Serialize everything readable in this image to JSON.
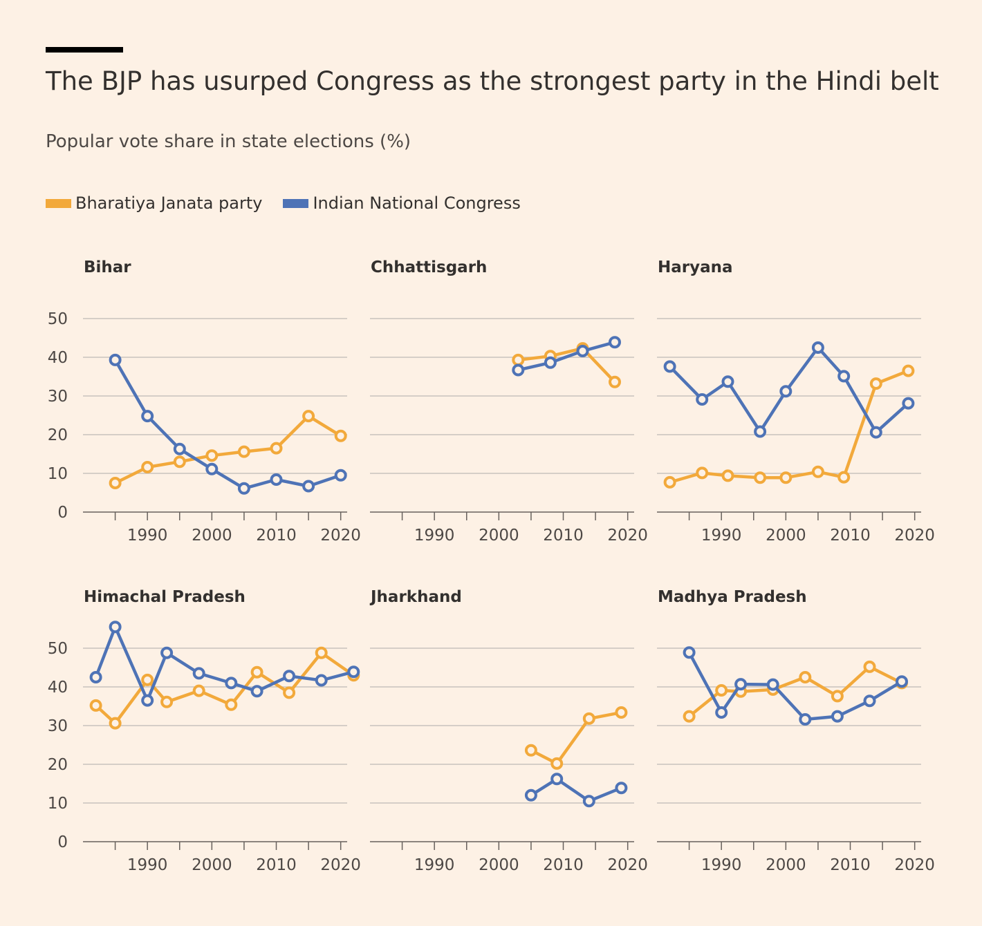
{
  "title": "The BJP has usurped Congress as the strongest party in the Hindi belt",
  "subtitle": "Popular vote share in state elections (%)",
  "colors": {
    "bjp": "#f2a93b",
    "inc": "#4e73b6",
    "grid": "#c8c3bd",
    "axis": "#66605c"
  },
  "legend": [
    {
      "label": "Bharatiya Janata party",
      "key": "bjp"
    },
    {
      "label": "Indian National Congress",
      "key": "inc"
    }
  ],
  "chart_data": {
    "type": "line",
    "title": "Popular vote share in state elections (%)",
    "x_ticks": [
      1990,
      2000,
      2010,
      2020
    ],
    "y_ticks": [
      0,
      10,
      20,
      30,
      40,
      50
    ],
    "xlim": [
      1980,
      2021
    ],
    "ylim": [
      0,
      50
    ],
    "panels": [
      {
        "name": "Bihar",
        "series": [
          {
            "key": "bjp",
            "name": "Bharatiya Janata party",
            "x": [
              1985,
              1990,
              1995,
              2000,
              2005,
              2010,
              2015,
              2020
            ],
            "y": [
              7.5,
              11.6,
              13,
              14.6,
              15.6,
              16.5,
              24.8,
              19.7
            ]
          },
          {
            "key": "inc",
            "name": "Indian National Congress",
            "x": [
              1985,
              1990,
              1995,
              2000,
              2005,
              2010,
              2015,
              2020
            ],
            "y": [
              39.3,
              24.8,
              16.3,
              11.1,
              6.1,
              8.4,
              6.7,
              9.5
            ]
          }
        ]
      },
      {
        "name": "Chhattisgarh",
        "series": [
          {
            "key": "bjp",
            "name": "Bharatiya Janata party",
            "x": [
              2003,
              2008,
              2013,
              2018
            ],
            "y": [
              39.3,
              40.3,
              42.3,
              33.6
            ]
          },
          {
            "key": "inc",
            "name": "Indian National Congress",
            "x": [
              2003,
              2008,
              2013,
              2018
            ],
            "y": [
              36.7,
              38.6,
              41.6,
              43.9
            ]
          }
        ]
      },
      {
        "name": "Haryana",
        "series": [
          {
            "key": "bjp",
            "name": "Bharatiya Janata party",
            "x": [
              1982,
              1987,
              1991,
              1996,
              2000,
              2005,
              2009,
              2014,
              2019
            ],
            "y": [
              7.7,
              10.1,
              9.4,
              8.9,
              8.9,
              10.4,
              9.0,
              33.2,
              36.5
            ]
          },
          {
            "key": "inc",
            "name": "Indian National Congress",
            "x": [
              1982,
              1987,
              1991,
              1996,
              2000,
              2005,
              2009,
              2014,
              2019
            ],
            "y": [
              37.6,
              29.1,
              33.7,
              20.8,
              31.2,
              42.5,
              35.1,
              20.6,
              28.1
            ]
          }
        ]
      },
      {
        "name": "Himachal Pradesh",
        "series": [
          {
            "key": "bjp",
            "name": "Bharatiya Janata party",
            "x": [
              1982,
              1985,
              1990,
              1993,
              1998,
              2003,
              2007,
              2012,
              2017,
              2022
            ],
            "y": [
              35.2,
              30.6,
              41.8,
              36.1,
              39,
              35.4,
              43.8,
              38.5,
              48.8,
              43
            ]
          },
          {
            "key": "inc",
            "name": "Indian National Congress",
            "x": [
              1982,
              1985,
              1990,
              1993,
              1998,
              2003,
              2007,
              2012,
              2017,
              2022
            ],
            "y": [
              42.5,
              55.5,
              36.5,
              48.8,
              43.5,
              41,
              38.9,
              42.8,
              41.7,
              43.9
            ]
          }
        ]
      },
      {
        "name": "Jharkhand",
        "series": [
          {
            "key": "bjp",
            "name": "Bharatiya Janata party",
            "x": [
              2005,
              2009,
              2014,
              2019
            ],
            "y": [
              23.6,
              20.2,
              31.8,
              33.4
            ]
          },
          {
            "key": "inc",
            "name": "Indian National Congress",
            "x": [
              2005,
              2009,
              2014,
              2019
            ],
            "y": [
              12,
              16.2,
              10.5,
              13.9
            ]
          }
        ]
      },
      {
        "name": "Madhya Pradesh",
        "series": [
          {
            "key": "bjp",
            "name": "Bharatiya Janata party",
            "x": [
              1985,
              1990,
              1993,
              1998,
              2003,
              2008,
              2013,
              2018
            ],
            "y": [
              32.4,
              39.1,
              38.8,
              39.3,
              42.5,
              37.6,
              45.2,
              41
            ]
          },
          {
            "key": "inc",
            "name": "Indian National Congress",
            "x": [
              1985,
              1990,
              1993,
              1998,
              2003,
              2008,
              2013,
              2018
            ],
            "y": [
              48.9,
              33.4,
              40.7,
              40.6,
              31.6,
              32.4,
              36.4,
              41.4
            ]
          }
        ]
      }
    ]
  }
}
